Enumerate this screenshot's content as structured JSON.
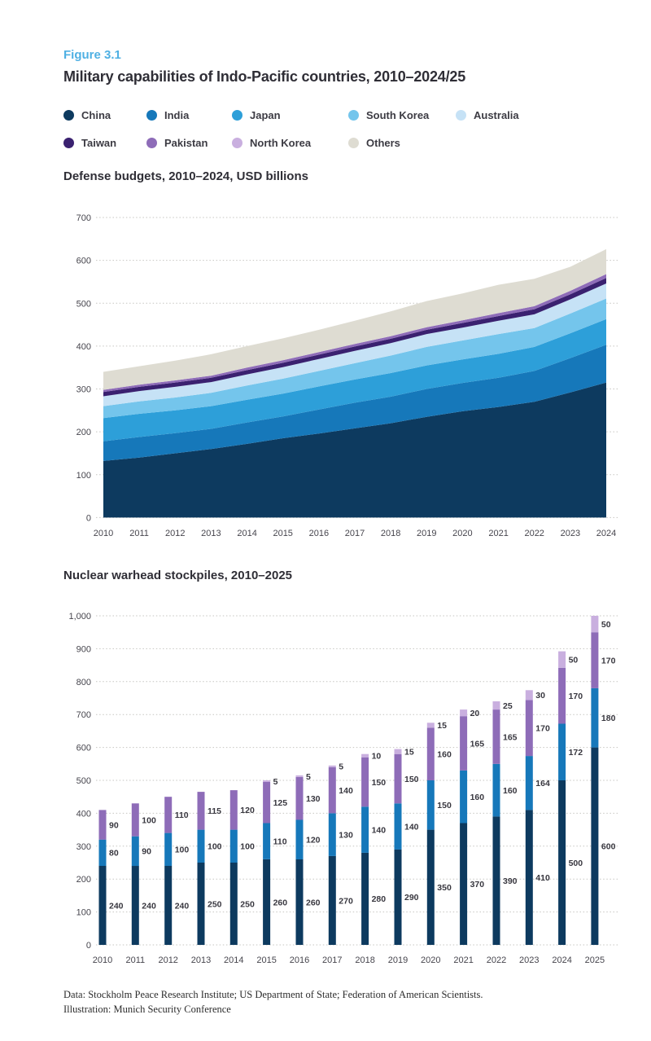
{
  "figure": {
    "label": "Figure 3.1",
    "title": "Military capabilities of Indo-Pacific countries, 2010–2024/25"
  },
  "legend": {
    "items": [
      {
        "label": "China",
        "color": "#0d3a5f"
      },
      {
        "label": "India",
        "color": "#1678ba"
      },
      {
        "label": "Japan",
        "color": "#2d9fd9"
      },
      {
        "label": "South Korea",
        "color": "#74c5ec"
      },
      {
        "label": "Australia",
        "color": "#c6e2f6"
      },
      {
        "label": "Taiwan",
        "color": "#3a2170"
      },
      {
        "label": "Pakistan",
        "color": "#8e6cb8"
      },
      {
        "label": "North Korea",
        "color": "#c9afdf"
      },
      {
        "label": "Others",
        "color": "#dedcd2"
      }
    ]
  },
  "chart_data": [
    {
      "type": "area",
      "stacked": true,
      "title": "Defense budgets, 2010–2024, USD billions",
      "x": [
        2010,
        2011,
        2012,
        2013,
        2014,
        2015,
        2016,
        2017,
        2018,
        2019,
        2020,
        2021,
        2022,
        2023,
        2024
      ],
      "ylim": [
        0,
        700
      ],
      "ytick_step": 100,
      "grid": "dotted-horizontal",
      "legend_position": "top",
      "series": [
        {
          "name": "China",
          "color": "#0d3a5f",
          "values": [
            132,
            140,
            150,
            160,
            172,
            185,
            196,
            208,
            220,
            235,
            248,
            258,
            270,
            292,
            315
          ]
        },
        {
          "name": "India",
          "color": "#1678ba",
          "values": [
            46,
            48,
            47,
            47,
            50,
            51,
            56,
            60,
            62,
            65,
            66,
            68,
            72,
            80,
            88
          ]
        },
        {
          "name": "Japan",
          "color": "#2d9fd9",
          "values": [
            54,
            54,
            53,
            53,
            53,
            53,
            54,
            54,
            55,
            55,
            55,
            56,
            56,
            58,
            60
          ]
        },
        {
          "name": "South Korea",
          "color": "#74c5ec",
          "values": [
            28,
            29,
            30,
            31,
            33,
            35,
            36,
            38,
            41,
            43,
            44,
            46,
            44,
            46,
            48
          ]
        },
        {
          "name": "Australia",
          "color": "#c6e2f6",
          "values": [
            23,
            24,
            25,
            25,
            26,
            27,
            28,
            29,
            29,
            30,
            30,
            31,
            32,
            33,
            35
          ]
        },
        {
          "name": "Taiwan",
          "color": "#3a2170",
          "values": [
            10,
            10,
            10,
            10,
            10,
            10,
            10,
            10,
            10,
            10,
            11,
            11,
            12,
            12,
            13
          ]
        },
        {
          "name": "Pakistan",
          "color": "#8e6cb8",
          "values": [
            5,
            5,
            5,
            5,
            6,
            6,
            6,
            6,
            6,
            6,
            6,
            7,
            7,
            8,
            9
          ]
        },
        {
          "name": "Others",
          "color": "#dedcd2",
          "values": [
            42,
            43,
            46,
            50,
            50,
            51,
            52,
            54,
            58,
            61,
            63,
            66,
            64,
            56,
            58
          ]
        }
      ]
    },
    {
      "type": "bar",
      "stacked": true,
      "title": "Nuclear warhead stockpiles, 2010–2025",
      "categories": [
        2010,
        2011,
        2012,
        2013,
        2014,
        2015,
        2016,
        2017,
        2018,
        2019,
        2020,
        2021,
        2022,
        2023,
        2024,
        2025
      ],
      "ylim": [
        0,
        1000
      ],
      "ytick_step": 100,
      "grid": "dotted-horizontal",
      "value_labels": true,
      "series": [
        {
          "name": "China",
          "color": "#0d3a5f",
          "values": [
            240,
            240,
            240,
            250,
            250,
            260,
            260,
            270,
            280,
            290,
            350,
            370,
            390,
            410,
            500,
            600
          ]
        },
        {
          "name": "India",
          "color": "#1678ba",
          "values": [
            80,
            90,
            100,
            100,
            100,
            110,
            120,
            130,
            140,
            140,
            150,
            160,
            160,
            164,
            172,
            180
          ]
        },
        {
          "name": "Pakistan",
          "color": "#8e6cb8",
          "values": [
            90,
            100,
            110,
            115,
            120,
            125,
            130,
            140,
            150,
            150,
            160,
            165,
            165,
            170,
            170,
            170
          ]
        },
        {
          "name": "North Korea",
          "color": "#c9afdf",
          "values": [
            0,
            0,
            0,
            0,
            0,
            5,
            5,
            5,
            10,
            15,
            15,
            20,
            25,
            30,
            50,
            50
          ]
        }
      ]
    }
  ],
  "footer": {
    "line1": "Data: Stockholm Peace Research Institute; US Department of State; Federation of American Scientists.",
    "line2": "Illustration: Munich Security Conference"
  }
}
